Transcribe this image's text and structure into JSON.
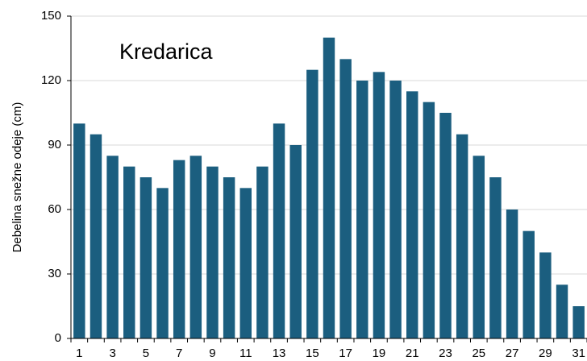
{
  "chart_data": {
    "type": "bar",
    "annotation": "Kredarica",
    "y_label": "Debelina snežne odeje (cm)",
    "categories": [
      "1",
      null,
      "3",
      null,
      "5",
      null,
      "7",
      null,
      "9",
      null,
      "11",
      null,
      "13",
      null,
      "15",
      null,
      "17",
      null,
      "19",
      null,
      "21",
      null,
      "23",
      null,
      "25",
      null,
      "27",
      null,
      "29",
      null,
      "31"
    ],
    "values": [
      100,
      95,
      85,
      80,
      75,
      70,
      83,
      85,
      80,
      75,
      70,
      80,
      100,
      90,
      125,
      140,
      130,
      120,
      124,
      120,
      115,
      110,
      105,
      95,
      85,
      75,
      60,
      50,
      40,
      25,
      15
    ],
    "color": "#1b5e7f",
    "ylim": [
      0,
      150
    ],
    "yticks": [
      0,
      30,
      60,
      90,
      120,
      150
    ],
    "grid": true
  }
}
